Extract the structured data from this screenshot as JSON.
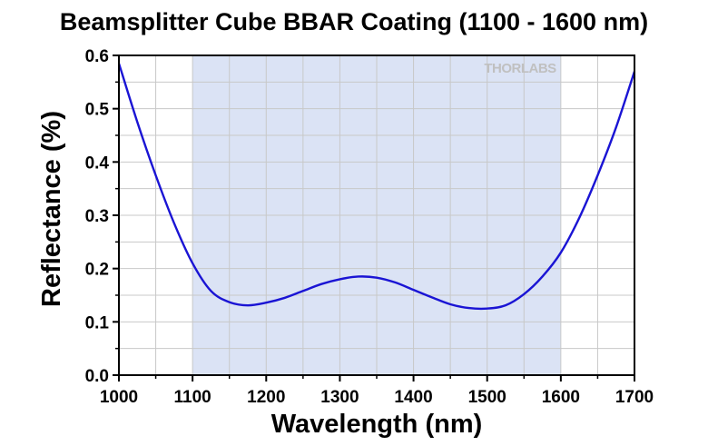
{
  "chart_data": {
    "type": "line",
    "title": "Beamsplitter Cube BBAR Coating (1100 - 1600 nm)",
    "xlabel": "Wavelength (nm)",
    "ylabel": "Reflectance (%)",
    "xlim": [
      1000,
      1700
    ],
    "ylim": [
      0.0,
      0.6
    ],
    "xticks": [
      1000,
      1100,
      1200,
      1300,
      1400,
      1500,
      1600,
      1700
    ],
    "yticks": [
      0.0,
      0.1,
      0.2,
      0.3,
      0.4,
      0.5,
      0.6
    ],
    "x_minor_step": 50,
    "y_minor_step": 0.05,
    "grid": true,
    "legend": "none",
    "shaded_band": {
      "x_start": 1100,
      "x_end": 1600,
      "color": "#dbe3f5"
    },
    "watermark": "THORLABS",
    "series": [
      {
        "color": "#1a14d4",
        "x": [
          1000,
          1025,
          1050,
          1075,
          1100,
          1125,
          1150,
          1175,
          1200,
          1225,
          1250,
          1275,
          1300,
          1325,
          1350,
          1375,
          1400,
          1425,
          1450,
          1475,
          1500,
          1525,
          1550,
          1575,
          1600,
          1625,
          1650,
          1675,
          1700
        ],
        "y": [
          0.585,
          0.475,
          0.375,
          0.285,
          0.21,
          0.158,
          0.137,
          0.131,
          0.136,
          0.145,
          0.158,
          0.171,
          0.18,
          0.185,
          0.183,
          0.174,
          0.16,
          0.146,
          0.133,
          0.126,
          0.125,
          0.131,
          0.152,
          0.185,
          0.23,
          0.295,
          0.375,
          0.465,
          0.57
        ]
      }
    ]
  }
}
